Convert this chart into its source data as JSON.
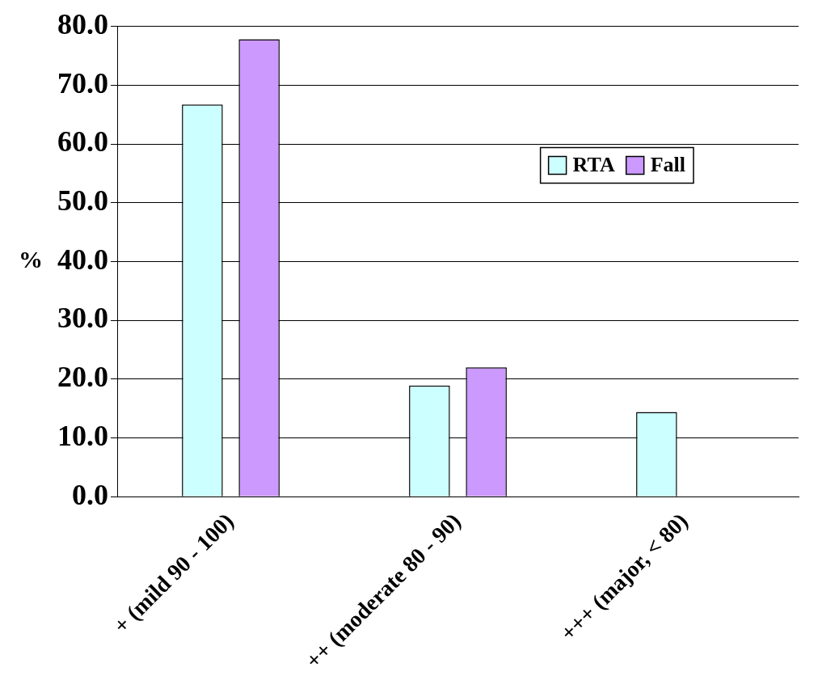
{
  "chart_data": {
    "type": "bar",
    "ylabel": "%",
    "categories": [
      "+ (mild 90 - 100)",
      "++ (moderate 80 - 90)",
      "+++ (major, < 80)"
    ],
    "series": [
      {
        "name": "RTA",
        "color": "#ccffff",
        "values": [
          66.7,
          18.9,
          14.4
        ]
      },
      {
        "name": "Fall",
        "color": "#cc99ff",
        "values": [
          77.8,
          22.0,
          0.0
        ]
      }
    ],
    "ylim": [
      0,
      80
    ],
    "yticks": [
      {
        "value": 0,
        "label": "0.0"
      },
      {
        "value": 10,
        "label": "10.0"
      },
      {
        "value": 20,
        "label": "20.0"
      },
      {
        "value": 30,
        "label": "30.0"
      },
      {
        "value": 40,
        "label": "40.0"
      },
      {
        "value": 50,
        "label": "50.0"
      },
      {
        "value": 60,
        "label": "60.0"
      },
      {
        "value": 70,
        "label": "70.0"
      },
      {
        "value": 80,
        "label": "80.0"
      }
    ],
    "grid": "y",
    "legend": "top right"
  }
}
